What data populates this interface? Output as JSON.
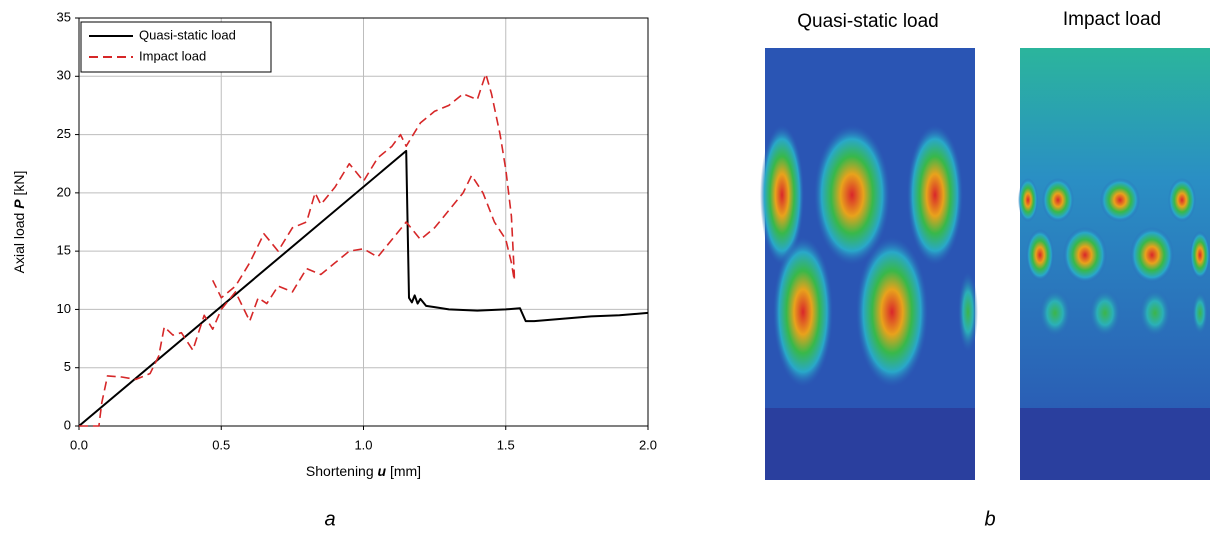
{
  "chart_data": {
    "type": "line",
    "xlabel": {
      "text": "Shortening ",
      "symbol": "u",
      "unit": " [mm]"
    },
    "ylabel": {
      "text": "Axial load ",
      "symbol": "P",
      "unit": " [kN]"
    },
    "xlim": [
      0,
      2
    ],
    "ylim": [
      0,
      35
    ],
    "xticks": [
      {
        "value": 0,
        "label": "0.0"
      },
      0.5,
      {
        "value": 1,
        "label": "1.0"
      },
      1.5,
      {
        "value": 2,
        "label": "2.0"
      }
    ],
    "yticks": [
      0,
      5,
      10,
      15,
      20,
      25,
      30,
      35
    ],
    "grid": true,
    "legend": "upper left",
    "series": [
      {
        "name": "Quasi-static load",
        "color": "#000000",
        "dash": false,
        "x": [
          0,
          1.15,
          1.16,
          1.17,
          1.18,
          1.19,
          1.2,
          1.22,
          1.25,
          1.3,
          1.4,
          1.5,
          1.55,
          1.57,
          1.6,
          1.7,
          1.8,
          1.9,
          2.0
        ],
        "values": [
          0,
          23.6,
          11,
          10.6,
          11.2,
          10.5,
          10.9,
          10.3,
          10.2,
          10,
          9.9,
          10,
          10.1,
          9,
          9,
          9.2,
          9.4,
          9.5,
          9.7
        ]
      },
      {
        "name": "Impact load",
        "color": "#d62728",
        "dash": true,
        "x": [
          0,
          0.07,
          0.08,
          0.1,
          0.15,
          0.2,
          0.25,
          0.28,
          0.3,
          0.33,
          0.36,
          0.4,
          0.44,
          0.47,
          0.5,
          0.55,
          0.6,
          0.63,
          0.66,
          0.7,
          0.75,
          0.8,
          0.85,
          0.9,
          0.95,
          1.0,
          1.05,
          1.1,
          1.15,
          1.2,
          1.25,
          1.3,
          1.35,
          1.38,
          1.42,
          1.46,
          1.5,
          1.52,
          1.53,
          1.53,
          1.52,
          1.5,
          1.48,
          1.45,
          1.43,
          1.4,
          1.35,
          1.3,
          1.25,
          1.2,
          1.15,
          1.13,
          1.1,
          1.05,
          1.0,
          0.95,
          0.9,
          0.85,
          0.83,
          0.8,
          0.75,
          0.7,
          0.65,
          0.6,
          0.55,
          0.5,
          0.47
        ],
        "values": [
          0,
          0,
          2,
          4.3,
          4.2,
          4,
          4.5,
          6,
          8.5,
          7.8,
          8,
          6.5,
          9.5,
          8.3,
          10,
          11.5,
          9,
          11,
          10.5,
          12,
          11.5,
          13.5,
          13,
          14,
          15,
          15.2,
          14.5,
          16,
          17.5,
          16,
          17,
          18.5,
          20,
          21.5,
          20,
          17.5,
          16,
          14,
          12.5,
          13,
          18,
          22,
          25,
          28.5,
          30.2,
          28,
          28.5,
          27.5,
          27,
          26,
          24,
          25,
          24,
          23,
          21,
          22.5,
          20.5,
          19,
          20,
          17.5,
          17,
          15,
          16.5,
          14,
          12,
          11,
          12.5
        ]
      }
    ]
  },
  "panel_b": {
    "titles": [
      "Quasi-static load",
      "Impact load"
    ]
  },
  "captions": [
    "a",
    "b"
  ]
}
